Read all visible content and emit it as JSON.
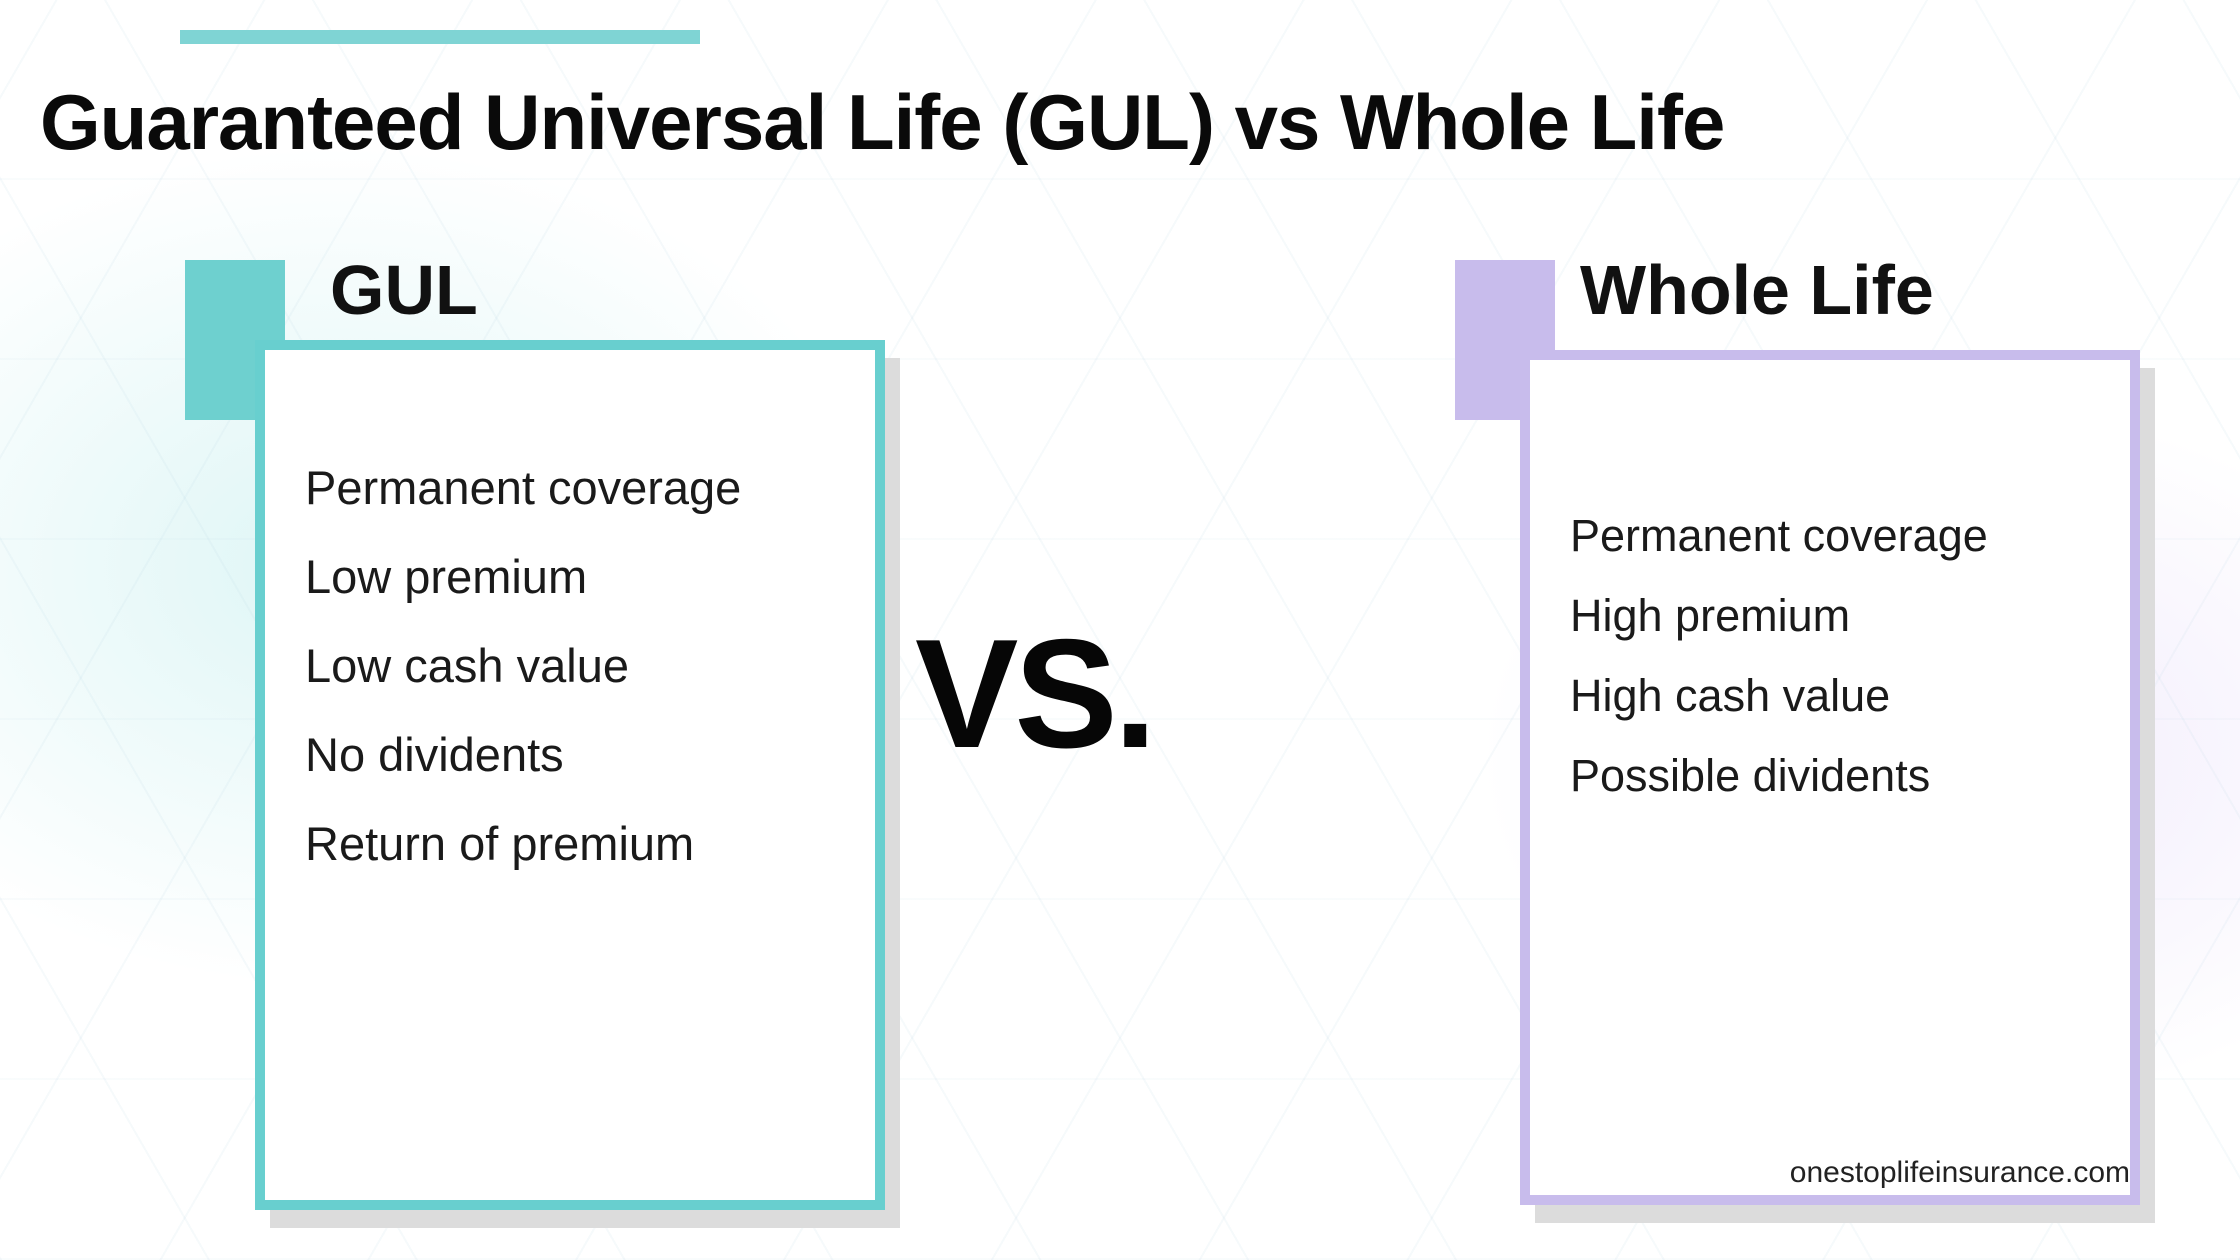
{
  "title": "Guaranteed Universal Life (GUL) vs Whole Life",
  "vs_label": "VS.",
  "credit": "onestoplifeinsurance.com",
  "colors": {
    "accent_teal": "#68cfcf",
    "accent_teal_tab": "#6ed0cf",
    "accent_lav": "#c8bcec",
    "accent_lav_tab": "#c8bcec",
    "top_rule": "#7fd4d4"
  },
  "left": {
    "label": "GUL",
    "items": [
      "Permanent coverage",
      "Low premium",
      "Low cash value",
      "No dividents",
      "Return of premium"
    ]
  },
  "right": {
    "label": "Whole Life",
    "items": [
      "Permanent coverage",
      "High premium",
      "High cash value",
      "Possible dividents"
    ]
  }
}
